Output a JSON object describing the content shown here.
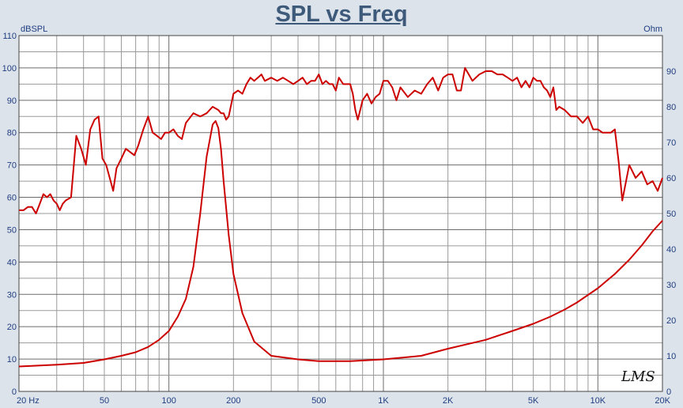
{
  "chart_data": {
    "type": "line",
    "title": "SPL vs Freq",
    "xscale": "log",
    "xlim": [
      20,
      20000
    ],
    "ylim_left": [
      0,
      110
    ],
    "ylim_right": [
      0,
      100
    ],
    "left_axis_label": "dBSPL",
    "right_axis_label": "Ohm",
    "x_ticks": [
      {
        "value": 20,
        "label": "20  Hz"
      },
      {
        "value": 50,
        "label": "50"
      },
      {
        "value": 100,
        "label": "100"
      },
      {
        "value": 200,
        "label": "200"
      },
      {
        "value": 500,
        "label": "500"
      },
      {
        "value": 1000,
        "label": "1K"
      },
      {
        "value": 2000,
        "label": "2K"
      },
      {
        "value": 5000,
        "label": "5K"
      },
      {
        "value": 10000,
        "label": "10K"
      },
      {
        "value": 20000,
        "label": "20K"
      }
    ],
    "y_ticks_left": [
      0,
      10,
      20,
      30,
      40,
      50,
      60,
      70,
      80,
      90,
      100,
      110
    ],
    "y_ticks_right": [
      0,
      10,
      20,
      30,
      40,
      50,
      60,
      70,
      80,
      90
    ],
    "grid": true,
    "series_color": "#cc0000",
    "series": [
      {
        "axis": "left",
        "x": [
          20,
          21,
          22,
          23,
          24,
          25,
          26,
          27,
          28,
          29,
          30,
          31,
          32,
          33,
          35,
          37,
          39,
          41,
          43,
          45,
          47,
          49,
          51,
          53,
          55,
          57,
          60,
          63,
          66,
          69,
          72,
          76,
          80,
          84,
          88,
          92,
          96,
          100,
          105,
          110,
          115,
          120,
          130,
          140,
          150,
          160,
          170,
          175,
          180,
          185,
          190,
          200,
          210,
          220,
          230,
          240,
          250,
          260,
          270,
          280,
          300,
          320,
          340,
          360,
          380,
          400,
          420,
          440,
          460,
          480,
          500,
          520,
          540,
          560,
          580,
          600,
          620,
          650,
          680,
          700,
          720,
          740,
          760,
          780,
          800,
          840,
          880,
          920,
          960,
          1000,
          1050,
          1100,
          1150,
          1200,
          1300,
          1400,
          1500,
          1600,
          1700,
          1800,
          1900,
          2000,
          2100,
          2200,
          2300,
          2400,
          2500,
          2600,
          2800,
          3000,
          3200,
          3400,
          3600,
          3800,
          4000,
          4200,
          4400,
          4600,
          4800,
          5000,
          5200,
          5400,
          5600,
          5800,
          6000,
          6200,
          6400,
          6600,
          7000,
          7500,
          8000,
          8500,
          9000,
          9500,
          10000,
          10500,
          11000,
          11500,
          12000,
          12500,
          13000,
          14000,
          15000,
          16000,
          17000,
          18000,
          19000,
          20000
        ],
        "y": [
          56,
          56,
          57,
          57,
          55,
          58,
          61,
          60,
          61,
          59,
          58,
          56,
          58,
          59,
          60,
          79,
          75,
          70,
          81,
          84,
          85,
          72,
          70,
          66,
          62,
          69,
          72,
          75,
          74,
          73,
          76,
          81,
          85,
          80,
          79,
          78,
          80,
          80,
          81,
          79,
          78,
          83,
          86,
          85,
          86,
          88,
          87,
          86,
          86,
          84,
          85,
          92,
          93,
          92,
          95,
          97,
          96,
          97,
          98,
          96,
          97,
          96,
          97,
          96,
          95,
          96,
          97,
          95,
          96,
          96,
          98,
          95,
          96,
          95,
          95,
          93,
          97,
          95,
          95,
          95,
          92,
          87,
          84,
          87,
          90,
          92,
          89,
          91,
          92,
          96,
          96,
          94,
          90,
          94,
          91,
          93,
          92,
          95,
          97,
          93,
          97,
          98,
          98,
          93,
          93,
          100,
          98,
          96,
          98,
          99,
          99,
          98,
          98,
          97,
          96,
          97,
          94,
          96,
          94,
          97,
          96,
          96,
          94,
          93,
          91,
          94,
          87,
          88,
          87,
          85,
          85,
          83,
          85,
          81,
          81,
          80,
          80,
          80,
          81,
          71,
          59,
          70,
          66,
          68,
          64,
          65,
          62,
          66
        ]
      },
      {
        "axis": "right",
        "x": [
          20,
          30,
          40,
          50,
          60,
          70,
          80,
          90,
          100,
          110,
          120,
          130,
          140,
          150,
          160,
          165,
          170,
          175,
          180,
          190,
          200,
          220,
          250,
          300,
          400,
          500,
          700,
          1000,
          1500,
          2000,
          3000,
          4000,
          5000,
          6000,
          7000,
          8000,
          10000,
          12000,
          14000,
          16000,
          18000,
          20000
        ],
        "y": [
          7,
          7.5,
          8,
          9,
          10,
          11,
          12.5,
          14.5,
          17,
          21,
          26,
          35,
          50,
          66,
          75,
          76,
          74,
          68,
          59,
          44,
          33,
          22,
          14,
          10,
          9,
          8.5,
          8.5,
          9,
          10,
          12,
          14.5,
          17,
          19,
          21,
          23,
          25,
          29,
          33,
          37,
          41,
          45,
          48
        ]
      }
    ]
  },
  "watermark": "LMS"
}
